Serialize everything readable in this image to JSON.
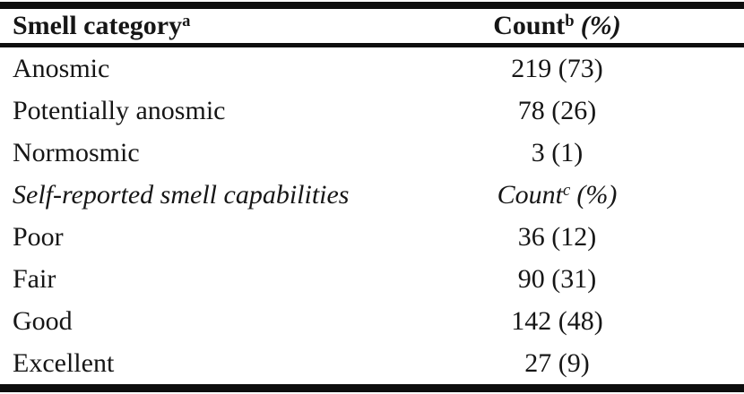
{
  "colors": {
    "background": "#ffffff",
    "text": "#161616",
    "rule": "#0e0e0e"
  },
  "header": {
    "category_label": "Smell category",
    "category_footnote": "a",
    "count_label": "Count",
    "count_footnote": "b",
    "count_suffix": "(%)"
  },
  "rows": [
    {
      "label": "Anosmic",
      "value": "219 (73)"
    },
    {
      "label": "Potentially anosmic",
      "value": "78 (26)"
    },
    {
      "label": "Normosmic",
      "value": "3 (1)"
    },
    {
      "label": "Self-reported smell capabilities",
      "value_main": "Count",
      "value_footnote": "c",
      "value_suffix": "(%)"
    },
    {
      "label": "Poor",
      "value": "36 (12)"
    },
    {
      "label": "Fair",
      "value": "90 (31)"
    },
    {
      "label": "Good",
      "value": "142 (48)"
    },
    {
      "label": "Excellent",
      "value": "27 (9)"
    }
  ]
}
